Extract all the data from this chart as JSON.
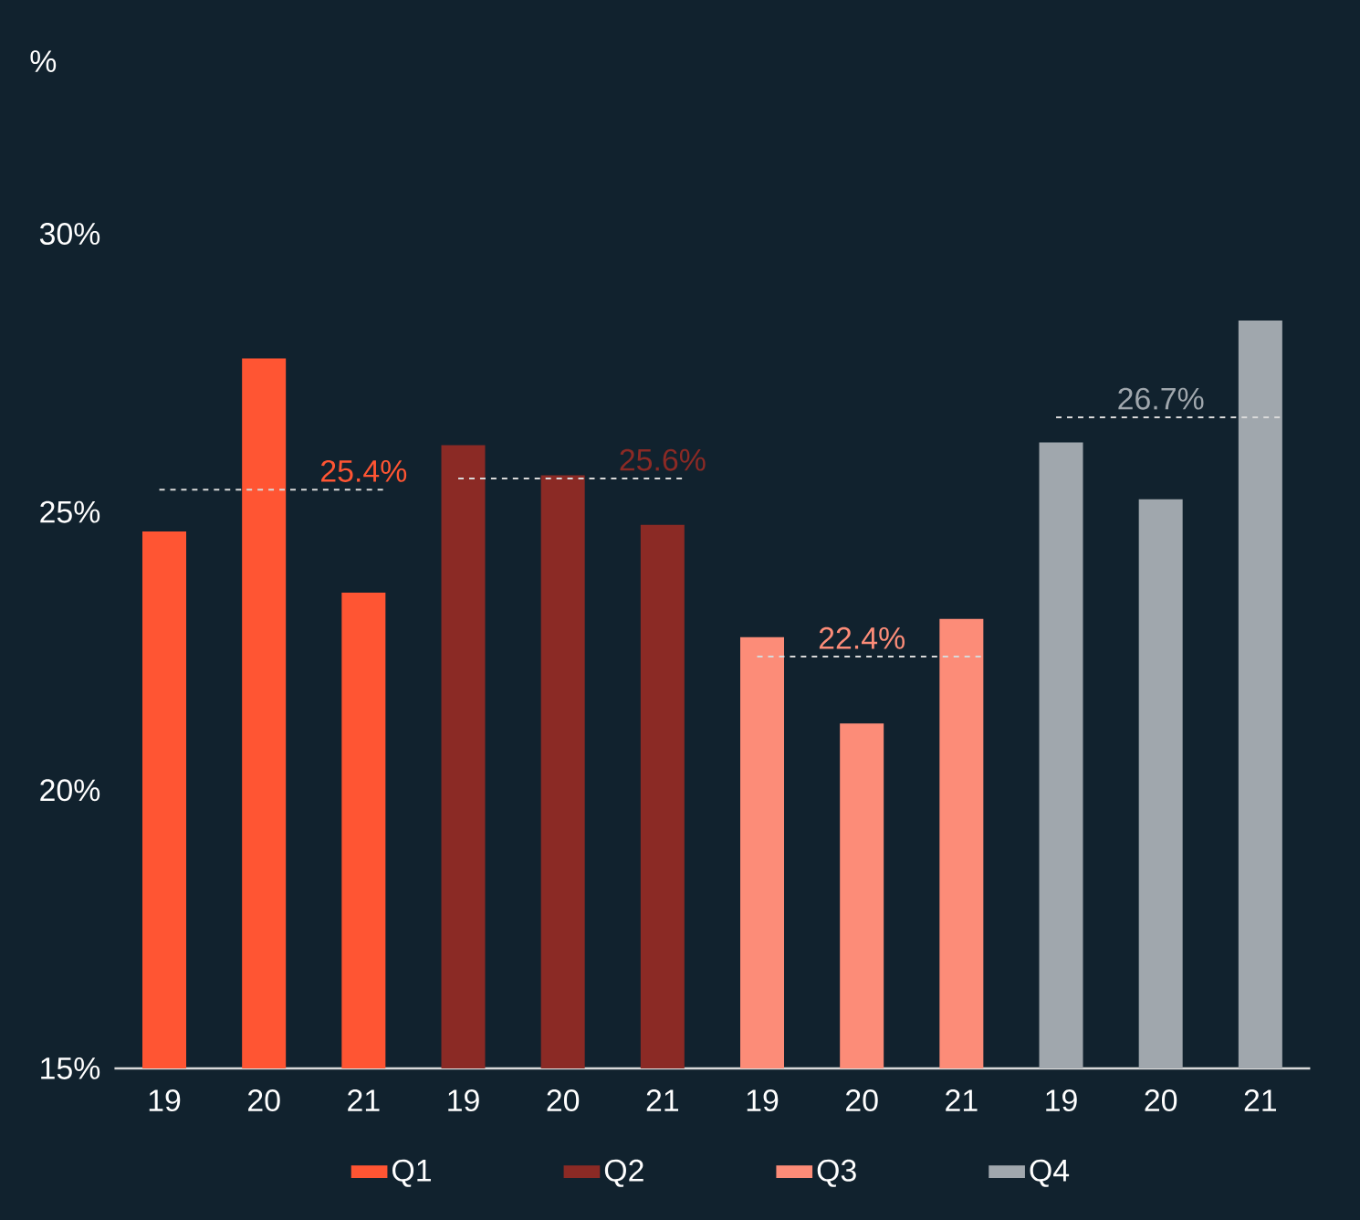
{
  "chart_data": {
    "type": "bar",
    "ylabel": "%",
    "categories": [
      "19",
      "20",
      "21",
      "19",
      "20",
      "21",
      "19",
      "20",
      "21",
      "19",
      "20",
      "21"
    ],
    "series": [
      {
        "name": "Q1",
        "color": "#ff5533",
        "values": [
          24.65,
          27.76,
          23.55,
          null,
          null,
          null,
          null,
          null,
          null,
          null,
          null,
          null
        ]
      },
      {
        "name": "Q2",
        "color": "#8b2a25",
        "values": [
          null,
          null,
          null,
          26.2,
          25.66,
          24.77,
          null,
          null,
          null,
          null,
          null,
          null
        ]
      },
      {
        "name": "Q3",
        "color": "#fc8c78",
        "values": [
          null,
          null,
          null,
          null,
          null,
          null,
          22.75,
          21.2,
          23.08,
          null,
          null,
          null
        ]
      },
      {
        "name": "Q4",
        "color": "#a0a7ad",
        "values": [
          null,
          null,
          null,
          null,
          null,
          null,
          null,
          null,
          null,
          26.25,
          25.23,
          28.44
        ]
      }
    ],
    "ylim": [
      15,
      30
    ],
    "yticks": [
      {
        "value": 15,
        "label": "15%"
      },
      {
        "value": 20,
        "label": "20%"
      },
      {
        "value": 25,
        "label": "25%"
      },
      {
        "value": 30,
        "label": "30%"
      }
    ],
    "ref_lines": [
      {
        "axis": "y",
        "value": 25.4,
        "label": "25.4%",
        "color": "#d9d9d9",
        "line_style": "dashed"
      },
      {
        "axis": "y",
        "value": 25.6,
        "label": "25.6%",
        "color": "#d9d9d9",
        "line_style": "dashed"
      },
      {
        "axis": "y",
        "value": 22.4,
        "label": "22.4%",
        "color": "#d9d9d9",
        "line_style": "dashed"
      },
      {
        "axis": "y",
        "value": 26.7,
        "label": "26.7%",
        "color": "#d9d9d9",
        "line_style": "dashed"
      }
    ],
    "grid": false,
    "legend": "bottom"
  }
}
